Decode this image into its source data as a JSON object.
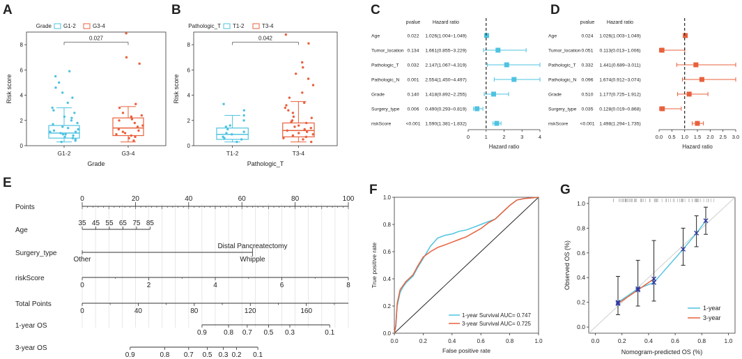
{
  "panels": {
    "A": "A",
    "B": "B",
    "C": "C",
    "D": "D",
    "E": "E",
    "F": "F",
    "G": "G"
  },
  "colors": {
    "blue": "#4ec3e0",
    "red": "#e8603c",
    "dark": "#222222"
  },
  "chart_data": [
    {
      "id": "A",
      "type": "scatter",
      "title": "Grade",
      "legend": [
        "G1-2",
        "G3-4"
      ],
      "categories": [
        "G1-2",
        "G3-4"
      ],
      "xlabel": "Grade",
      "ylabel": "Risk score",
      "ylim": [
        0,
        9
      ],
      "yticks": [
        "0",
        "2",
        "4",
        "6",
        "8"
      ],
      "pvalue": "0.027",
      "box": [
        {
          "q1": 0.6,
          "median": 1.0,
          "q3": 1.6,
          "lower": 0.3,
          "upper": 3.0
        },
        {
          "q1": 0.8,
          "median": 1.4,
          "q3": 2.2,
          "lower": 0.3,
          "upper": 3.1
        }
      ],
      "points": [
        [
          0.3,
          0.5,
          0.7,
          0.8,
          0.9,
          1.0,
          1.1,
          1.2,
          1.3,
          1.5,
          1.7,
          2.0,
          2.3,
          2.6,
          3.0,
          3.4,
          3.8,
          4.2,
          4.6,
          5.0,
          5.5,
          5.9,
          0.4,
          0.6,
          0.9,
          1.1,
          1.4,
          1.8,
          2.2,
          2.8
        ],
        [
          0.4,
          0.7,
          0.9,
          1.1,
          1.3,
          1.5,
          1.8,
          2.0,
          2.3,
          2.6,
          3.0,
          1.2,
          0.6,
          2.1,
          1.6,
          3.3,
          6.5,
          7.0,
          8.9,
          1.0,
          0.8,
          2.4
        ]
      ]
    },
    {
      "id": "B",
      "type": "scatter",
      "title": "Pathologic_T",
      "legend": [
        "T1-2",
        "T3-4"
      ],
      "categories": [
        "T1-2",
        "T3-4"
      ],
      "xlabel": "Pathologic_T",
      "ylabel": "Risk score",
      "ylim": [
        0,
        9
      ],
      "yticks": [
        "0",
        "2",
        "4",
        "6",
        "8"
      ],
      "pvalue": "0.042",
      "box": [
        {
          "q1": 0.5,
          "median": 0.9,
          "q3": 1.4,
          "lower": 0.3,
          "upper": 2.4
        },
        {
          "q1": 0.7,
          "median": 1.2,
          "q3": 1.8,
          "lower": 0.3,
          "upper": 3.5
        }
      ],
      "points": [
        [
          0.3,
          0.5,
          0.7,
          0.9,
          1.1,
          1.3,
          1.6,
          2.0,
          2.4,
          2.8,
          3.3,
          0.6,
          1.0,
          1.5
        ],
        [
          0.3,
          0.5,
          0.7,
          0.9,
          1.0,
          1.1,
          1.2,
          1.4,
          1.6,
          1.8,
          2.0,
          2.3,
          2.6,
          3.0,
          3.4,
          3.8,
          4.2,
          4.8,
          5.3,
          5.7,
          6.2,
          6.6,
          8.1,
          8.8,
          0.6,
          0.8,
          1.3,
          1.5,
          1.9,
          2.2,
          2.8,
          3.2
        ]
      ]
    },
    {
      "id": "C",
      "type": "forest",
      "header_p": "pvalue",
      "header_hr": "Hazard ratio",
      "xlabel": "Hazard ratio",
      "xlim": [
        0,
        4
      ],
      "xticks": [
        0,
        1,
        2,
        3,
        4
      ],
      "ref": 1,
      "rows": [
        {
          "label": "Age",
          "p": "0.022",
          "hr_text": "1.026(1.004~1.049)",
          "hr": 1.026,
          "lo": 1.004,
          "hi": 1.049
        },
        {
          "label": "Tumor_location",
          "p": "0.134",
          "hr_text": "1.661(0.855~3.229)",
          "hr": 1.661,
          "lo": 0.855,
          "hi": 3.229
        },
        {
          "label": "Pathologic_T",
          "p": "0.032",
          "hr_text": "2.147(1.067~4.319)",
          "hr": 2.147,
          "lo": 1.067,
          "hi": 4.319
        },
        {
          "label": "Pathologic_N",
          "p": "0.001",
          "hr_text": "2.554(1.450~4.497)",
          "hr": 2.554,
          "lo": 1.45,
          "hi": 4.497
        },
        {
          "label": "Grade",
          "p": "0.140",
          "hr_text": "1.418(0.892~2.255)",
          "hr": 1.418,
          "lo": 0.892,
          "hi": 2.255
        },
        {
          "label": "Surgery_type",
          "p": "0.006",
          "hr_text": "0.490(0.293~0.819)",
          "hr": 0.49,
          "lo": 0.293,
          "hi": 0.819
        },
        {
          "label": "riskScore",
          "p": "<0.001",
          "hr_text": "1.590(1.381~1.832)",
          "hr": 1.59,
          "lo": 1.381,
          "hi": 1.832
        }
      ]
    },
    {
      "id": "D",
      "type": "forest",
      "header_p": "pvalue",
      "header_hr": "Hazard ratio",
      "xlabel": "Hazard ratio",
      "xlim": [
        0,
        3
      ],
      "xticks": [
        "0.0",
        "0.5",
        "1.0",
        "1.5",
        "2.0",
        "2.5",
        "3.0"
      ],
      "ref": 1,
      "rows": [
        {
          "label": "Age",
          "p": "0.024",
          "hr_text": "1.026(1.003~1.049)",
          "hr": 1.026,
          "lo": 1.003,
          "hi": 1.049
        },
        {
          "label": "Tumor_location",
          "p": "0.051",
          "hr_text": "0.113(0.013~1.006)",
          "hr": 0.113,
          "lo": 0.013,
          "hi": 1.006
        },
        {
          "label": "Pathologic_T",
          "p": "0.332",
          "hr_text": "1.441(0.689~3.011)",
          "hr": 1.441,
          "lo": 0.689,
          "hi": 3.011
        },
        {
          "label": "Pathologic_N",
          "p": "0.096",
          "hr_text": "1.674(0.912~3.074)",
          "hr": 1.674,
          "lo": 0.912,
          "hi": 3.074
        },
        {
          "label": "Grade",
          "p": "0.510",
          "hr_text": "1.177(0.725~1.912)",
          "hr": 1.177,
          "lo": 0.725,
          "hi": 1.912
        },
        {
          "label": "Surgery_type",
          "p": "0.035",
          "hr_text": "0.128(0.019~0.868)",
          "hr": 0.128,
          "lo": 0.019,
          "hi": 0.868
        },
        {
          "label": "riskScore",
          "p": "<0.001",
          "hr_text": "1.498(1.294~1.735)",
          "hr": 1.498,
          "lo": 1.294,
          "hi": 1.735
        }
      ]
    },
    {
      "id": "E",
      "type": "nomogram",
      "points_max": 100,
      "rows": [
        {
          "label": "Points",
          "kind": "axis",
          "ticks": [
            {
              "v": 0,
              "t": "0"
            },
            {
              "v": 20,
              "t": "20"
            },
            {
              "v": 40,
              "t": "40"
            },
            {
              "v": 60,
              "t": "60"
            },
            {
              "v": 80,
              "t": "80"
            },
            {
              "v": 100,
              "t": "100"
            }
          ],
          "minor": 2
        },
        {
          "label": "Age",
          "kind": "scale",
          "ticks": [
            {
              "v": 0,
              "t": "35"
            },
            {
              "v": 5.1,
              "t": "45"
            },
            {
              "v": 10.2,
              "t": "55"
            },
            {
              "v": 15.3,
              "t": "65"
            },
            {
              "v": 20.4,
              "t": "75"
            },
            {
              "v": 25.5,
              "t": "85"
            }
          ]
        },
        {
          "label": "Surgery_type",
          "kind": "cat",
          "end": 64,
          "left": "Other",
          "right": "Whipple",
          "top": "Distal Pancreatectomy"
        },
        {
          "label": "riskScore",
          "kind": "scale",
          "ticks": [
            {
              "v": 0,
              "t": "0"
            },
            {
              "v": 25,
              "t": "2"
            },
            {
              "v": 50,
              "t": "4"
            },
            {
              "v": 75,
              "t": "6"
            },
            {
              "v": 100,
              "t": "8"
            }
          ]
        },
        {
          "label": "Total Points",
          "kind": "scale",
          "ticks": [
            {
              "v": 0,
              "t": "0"
            },
            {
              "v": 21.05,
              "t": "40"
            },
            {
              "v": 42.1,
              "t": "80"
            },
            {
              "v": 63.16,
              "t": "120"
            },
            {
              "v": 84.21,
              "t": "160"
            }
          ]
        },
        {
          "label": "1-year OS",
          "kind": "scale",
          "ticks": [
            {
              "v": 45,
              "t": "0.9"
            },
            {
              "v": 55,
              "t": "0.8"
            },
            {
              "v": 62,
              "t": "0.7"
            },
            {
              "v": 70,
              "t": "0.5"
            },
            {
              "v": 78,
              "t": "0.3"
            },
            {
              "v": 93,
              "t": "0.1"
            }
          ]
        },
        {
          "label": "3-year OS",
          "kind": "scale",
          "ticks": [
            {
              "v": 18,
              "t": "0.9"
            },
            {
              "v": 31,
              "t": "0.8"
            },
            {
              "v": 40,
              "t": "0.7"
            },
            {
              "v": 47,
              "t": "0.5"
            },
            {
              "v": 53,
              "t": "0.3"
            },
            {
              "v": 58,
              "t": "0.2"
            },
            {
              "v": 66,
              "t": "0.1"
            }
          ]
        }
      ]
    },
    {
      "id": "F",
      "type": "line",
      "xlabel": "False positive rate",
      "ylabel": "True positive rate",
      "xlim": [
        0,
        1
      ],
      "ylim": [
        0,
        1
      ],
      "xticks": [
        "0.0",
        "0.2",
        "0.4",
        "0.6",
        "0.8",
        "1.0"
      ],
      "yticks": [
        "0.0",
        "0.2",
        "0.4",
        "0.6",
        "0.8",
        "1.0"
      ],
      "series": [
        {
          "name": "1-year Survival AUC= 0.747",
          "color": "#4ec3e0",
          "x": [
            0,
            0.01,
            0.02,
            0.04,
            0.06,
            0.08,
            0.1,
            0.13,
            0.16,
            0.2,
            0.25,
            0.3,
            0.35,
            0.4,
            0.45,
            0.5,
            0.55,
            0.6,
            0.65,
            0.7,
            0.75,
            0.8,
            0.85,
            0.9,
            1.0
          ],
          "y": [
            0,
            0.05,
            0.2,
            0.3,
            0.34,
            0.37,
            0.39,
            0.42,
            0.48,
            0.55,
            0.64,
            0.7,
            0.72,
            0.73,
            0.75,
            0.76,
            0.78,
            0.8,
            0.82,
            0.84,
            0.89,
            0.94,
            0.98,
            0.99,
            1.0
          ]
        },
        {
          "name": "3-year Survival AUC= 0.725",
          "color": "#e8603c",
          "x": [
            0,
            0.01,
            0.02,
            0.04,
            0.06,
            0.08,
            0.1,
            0.13,
            0.16,
            0.2,
            0.25,
            0.3,
            0.35,
            0.4,
            0.45,
            0.5,
            0.55,
            0.6,
            0.65,
            0.7,
            0.75,
            0.8,
            0.85,
            0.9,
            1.0
          ],
          "y": [
            0,
            0.06,
            0.22,
            0.32,
            0.35,
            0.38,
            0.4,
            0.43,
            0.49,
            0.56,
            0.6,
            0.63,
            0.65,
            0.67,
            0.69,
            0.71,
            0.74,
            0.77,
            0.81,
            0.84,
            0.89,
            0.94,
            0.98,
            0.99,
            1.0
          ]
        }
      ],
      "diagonal": true
    },
    {
      "id": "G",
      "type": "calibration",
      "xlabel": "Nomogram-predicted OS (%)",
      "ylabel": "Observed OS (%)",
      "xlim": [
        0,
        1
      ],
      "ylim": [
        0,
        1
      ],
      "xticks": [
        "0.0",
        "0.2",
        "0.4",
        "0.6",
        "0.8",
        "1.0"
      ],
      "yticks": [
        "0.0",
        "0.2",
        "0.4",
        "0.6",
        "0.8",
        "1.0"
      ],
      "series": [
        {
          "name": "1-year",
          "color": "#4ec3e0",
          "points": [
            {
              "x": 0.17,
              "y": 0.2,
              "lo": 0.1,
              "hi": 0.41
            },
            {
              "x": 0.32,
              "y": 0.31,
              "lo": 0.17,
              "hi": 0.54
            },
            {
              "x": 0.44,
              "y": 0.36,
              "lo": 0.21,
              "hi": 0.7
            },
            {
              "x": 0.66,
              "y": 0.63,
              "lo": 0.5,
              "hi": 0.8
            },
            {
              "x": 0.76,
              "y": 0.76,
              "lo": 0.65,
              "hi": 0.9
            },
            {
              "x": 0.83,
              "y": 0.86,
              "lo": 0.75,
              "hi": 0.97
            }
          ]
        },
        {
          "name": "3-year",
          "color": "#e8603c",
          "points": [
            {
              "x": 0.17,
              "y": 0.19
            },
            {
              "x": 0.32,
              "y": 0.3
            },
            {
              "x": 0.44,
              "y": 0.39
            }
          ]
        }
      ]
    }
  ]
}
